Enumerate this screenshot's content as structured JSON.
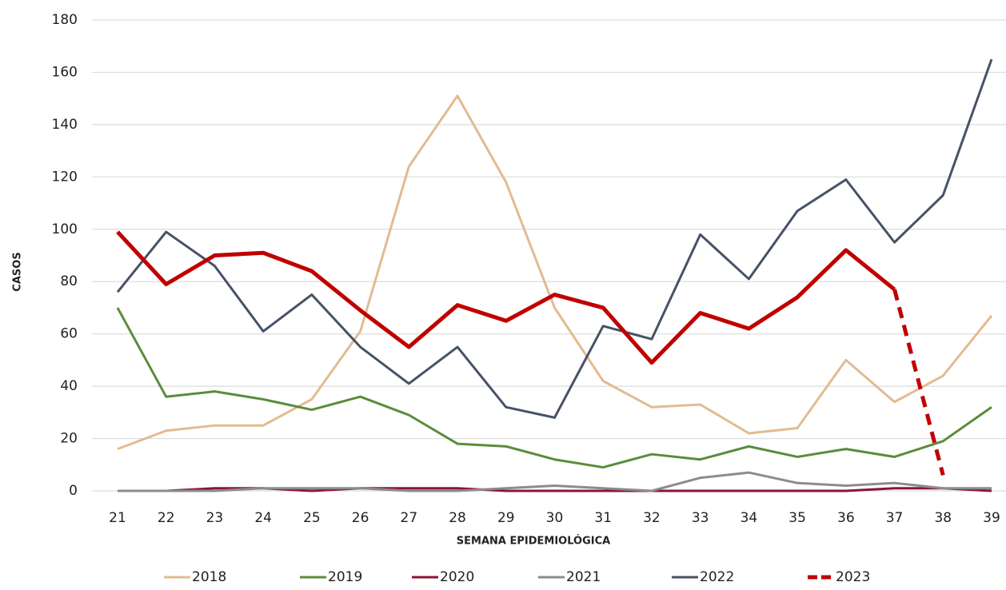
{
  "chart_data": {
    "type": "line",
    "categories": [
      "21",
      "22",
      "23",
      "24",
      "25",
      "26",
      "27",
      "28",
      "29",
      "30",
      "31",
      "32",
      "33",
      "34",
      "35",
      "36",
      "37",
      "38",
      "39"
    ],
    "x_label": "SEMANA EPIDEMIOLÓGICA",
    "y_label": "CASOS",
    "ylim": [
      0,
      180
    ],
    "yticks": [
      0,
      20,
      40,
      60,
      80,
      100,
      120,
      140,
      160,
      180
    ],
    "grid": true,
    "legend": "bottom",
    "series": [
      {
        "name": "2018",
        "color": "#e2bb92",
        "values": [
          16,
          23,
          25,
          25,
          35,
          61,
          124,
          151,
          118,
          70,
          42,
          32,
          33,
          22,
          24,
          50,
          34,
          44,
          67
        ]
      },
      {
        "name": "2019",
        "color": "#5b8c3a",
        "values": [
          70,
          36,
          38,
          35,
          31,
          36,
          29,
          18,
          17,
          12,
          9,
          14,
          12,
          17,
          13,
          16,
          13,
          19,
          32
        ]
      },
      {
        "name": "2020",
        "color": "#8b1538",
        "values": [
          0,
          0,
          1,
          1,
          0,
          1,
          1,
          1,
          0,
          0,
          0,
          0,
          0,
          0,
          0,
          0,
          1,
          1,
          0
        ]
      },
      {
        "name": "2021",
        "color": "#8c8c8c",
        "values": [
          0,
          0,
          0,
          1,
          1,
          1,
          0,
          0,
          1,
          2,
          1,
          0,
          5,
          7,
          3,
          2,
          3,
          1,
          1
        ]
      },
      {
        "name": "2022",
        "color": "#465266",
        "values": [
          76,
          99,
          86,
          61,
          75,
          55,
          41,
          55,
          32,
          28,
          63,
          58,
          98,
          81,
          107,
          119,
          95,
          113,
          165
        ]
      },
      {
        "name": "2023",
        "color": "#c00000",
        "width": 5,
        "dashed_from": 16,
        "values": [
          99,
          79,
          90,
          91,
          84,
          69,
          55,
          71,
          65,
          75,
          70,
          49,
          68,
          62,
          74,
          92,
          77,
          6,
          null
        ]
      }
    ]
  }
}
